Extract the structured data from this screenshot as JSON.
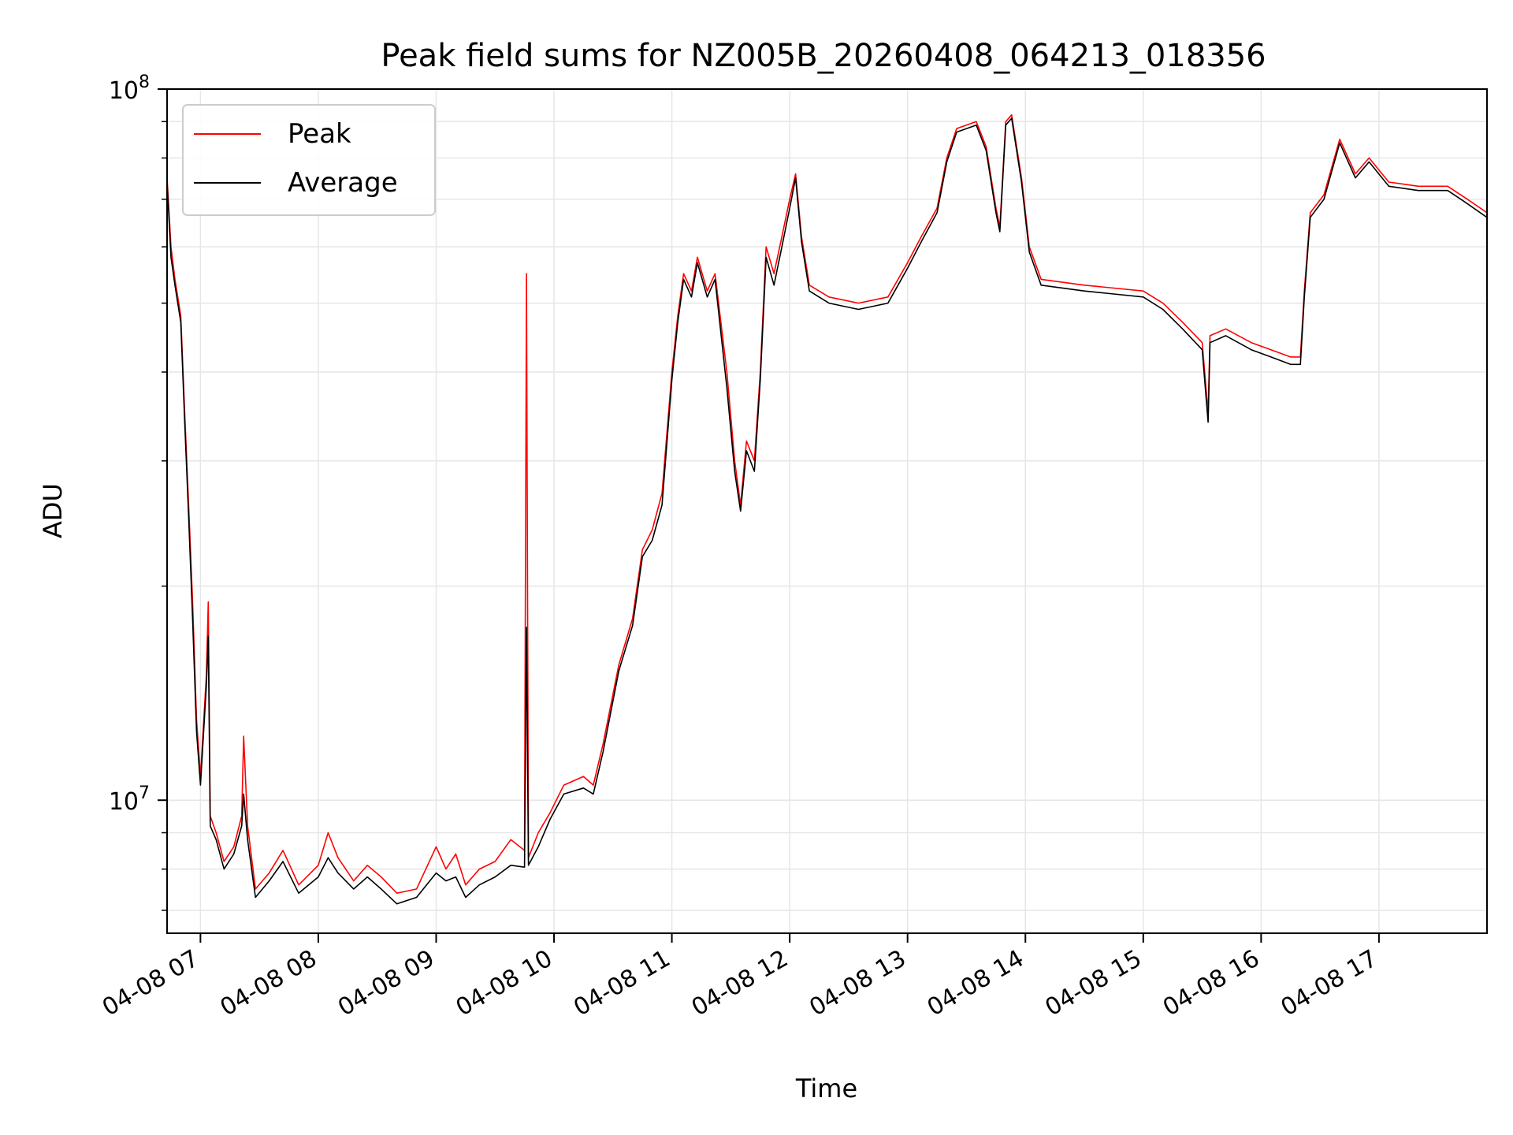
{
  "chart_data": {
    "type": "line",
    "title": "Peak field sums for NZ005B_20260408_064213_018356",
    "xlabel": "Time",
    "ylabel": "ADU",
    "yscale": "log",
    "grid": true,
    "legend_placement": "top-left",
    "xlim": [
      "2026-04-08 06:43",
      "2026-04-08 17:55"
    ],
    "ylim": [
      6500000,
      100000000
    ],
    "x_ticks": [
      {
        "time": "2026-04-08 07:00",
        "label": "04-08 07"
      },
      {
        "time": "2026-04-08 08:00",
        "label": "04-08 08"
      },
      {
        "time": "2026-04-08 09:00",
        "label": "04-08 09"
      },
      {
        "time": "2026-04-08 10:00",
        "label": "04-08 10"
      },
      {
        "time": "2026-04-08 11:00",
        "label": "04-08 11"
      },
      {
        "time": "2026-04-08 12:00",
        "label": "04-08 12"
      },
      {
        "time": "2026-04-08 13:00",
        "label": "04-08 13"
      },
      {
        "time": "2026-04-08 14:00",
        "label": "04-08 14"
      },
      {
        "time": "2026-04-08 15:00",
        "label": "04-08 15"
      },
      {
        "time": "2026-04-08 16:00",
        "label": "04-08 16"
      },
      {
        "time": "2026-04-08 17:00",
        "label": "04-08 17"
      }
    ],
    "y_ticks": [
      {
        "value": 10000000,
        "base": "10",
        "exp": "7"
      },
      {
        "value": 100000000,
        "base": "10",
        "exp": "8"
      }
    ],
    "series": [
      {
        "name": "Peak",
        "color": "#ff0000",
        "points": [
          [
            "2026-04-08 06:43",
            75000000
          ],
          [
            "2026-04-08 06:45",
            60000000
          ],
          [
            "2026-04-08 06:47",
            54000000
          ],
          [
            "2026-04-08 06:50",
            48000000
          ],
          [
            "2026-04-08 06:52",
            35000000
          ],
          [
            "2026-04-08 06:54",
            26000000
          ],
          [
            "2026-04-08 06:56",
            19000000
          ],
          [
            "2026-04-08 06:58",
            13000000
          ],
          [
            "2026-04-08 07:00",
            10800000
          ],
          [
            "2026-04-08 07:03",
            15000000
          ],
          [
            "2026-04-08 07:04",
            19000000
          ],
          [
            "2026-04-08 07:05",
            9500000
          ],
          [
            "2026-04-08 07:08",
            9000000
          ],
          [
            "2026-04-08 07:12",
            8200000
          ],
          [
            "2026-04-08 07:17",
            8600000
          ],
          [
            "2026-04-08 07:21",
            9500000
          ],
          [
            "2026-04-08 07:22",
            12300000
          ],
          [
            "2026-04-08 07:24",
            9200000
          ],
          [
            "2026-04-08 07:28",
            7500000
          ],
          [
            "2026-04-08 07:35",
            7900000
          ],
          [
            "2026-04-08 07:42",
            8500000
          ],
          [
            "2026-04-08 07:50",
            7600000
          ],
          [
            "2026-04-08 08:00",
            8100000
          ],
          [
            "2026-04-08 08:05",
            9000000
          ],
          [
            "2026-04-08 08:10",
            8300000
          ],
          [
            "2026-04-08 08:18",
            7700000
          ],
          [
            "2026-04-08 08:25",
            8100000
          ],
          [
            "2026-04-08 08:32",
            7800000
          ],
          [
            "2026-04-08 08:40",
            7400000
          ],
          [
            "2026-04-08 08:50",
            7500000
          ],
          [
            "2026-04-08 09:00",
            8600000
          ],
          [
            "2026-04-08 09:05",
            8000000
          ],
          [
            "2026-04-08 09:10",
            8400000
          ],
          [
            "2026-04-08 09:15",
            7600000
          ],
          [
            "2026-04-08 09:22",
            8000000
          ],
          [
            "2026-04-08 09:30",
            8200000
          ],
          [
            "2026-04-08 09:38",
            8800000
          ],
          [
            "2026-04-08 09:45",
            8500000
          ],
          [
            "2026-04-08 09:46",
            55000000
          ],
          [
            "2026-04-08 09:47",
            8300000
          ],
          [
            "2026-04-08 09:52",
            9000000
          ],
          [
            "2026-04-08 09:58",
            9600000
          ],
          [
            "2026-04-08 10:05",
            10500000
          ],
          [
            "2026-04-08 10:15",
            10800000
          ],
          [
            "2026-04-08 10:20",
            10500000
          ],
          [
            "2026-04-08 10:25",
            12000000
          ],
          [
            "2026-04-08 10:33",
            15500000
          ],
          [
            "2026-04-08 10:40",
            18000000
          ],
          [
            "2026-04-08 10:45",
            22500000
          ],
          [
            "2026-04-08 10:50",
            24000000
          ],
          [
            "2026-04-08 10:55",
            27000000
          ],
          [
            "2026-04-08 11:00",
            40000000
          ],
          [
            "2026-04-08 11:03",
            48000000
          ],
          [
            "2026-04-08 11:06",
            55000000
          ],
          [
            "2026-04-08 11:10",
            52000000
          ],
          [
            "2026-04-08 11:13",
            58000000
          ],
          [
            "2026-04-08 11:18",
            52000000
          ],
          [
            "2026-04-08 11:22",
            55000000
          ],
          [
            "2026-04-08 11:28",
            40000000
          ],
          [
            "2026-04-08 11:32",
            30000000
          ],
          [
            "2026-04-08 11:35",
            26000000
          ],
          [
            "2026-04-08 11:38",
            32000000
          ],
          [
            "2026-04-08 11:42",
            30000000
          ],
          [
            "2026-04-08 11:45",
            40000000
          ],
          [
            "2026-04-08 11:48",
            60000000
          ],
          [
            "2026-04-08 11:52",
            55000000
          ],
          [
            "2026-04-08 11:56",
            62000000
          ],
          [
            "2026-04-08 12:00",
            70000000
          ],
          [
            "2026-04-08 12:03",
            76000000
          ],
          [
            "2026-04-08 12:06",
            62000000
          ],
          [
            "2026-04-08 12:10",
            53000000
          ],
          [
            "2026-04-08 12:20",
            51000000
          ],
          [
            "2026-04-08 12:35",
            50000000
          ],
          [
            "2026-04-08 12:50",
            51000000
          ],
          [
            "2026-04-08 13:00",
            57000000
          ],
          [
            "2026-04-08 13:07",
            62000000
          ],
          [
            "2026-04-08 13:15",
            68000000
          ],
          [
            "2026-04-08 13:20",
            80000000
          ],
          [
            "2026-04-08 13:25",
            88000000
          ],
          [
            "2026-04-08 13:35",
            90000000
          ],
          [
            "2026-04-08 13:40",
            83000000
          ],
          [
            "2026-04-08 13:45",
            68000000
          ],
          [
            "2026-04-08 13:47",
            64000000
          ],
          [
            "2026-04-08 13:50",
            90000000
          ],
          [
            "2026-04-08 13:53",
            92000000
          ],
          [
            "2026-04-08 13:58",
            75000000
          ],
          [
            "2026-04-08 14:02",
            60000000
          ],
          [
            "2026-04-08 14:08",
            54000000
          ],
          [
            "2026-04-08 14:30",
            53000000
          ],
          [
            "2026-04-08 14:45",
            52500000
          ],
          [
            "2026-04-08 15:00",
            52000000
          ],
          [
            "2026-04-08 15:10",
            50000000
          ],
          [
            "2026-04-08 15:20",
            47000000
          ],
          [
            "2026-04-08 15:30",
            44000000
          ],
          [
            "2026-04-08 15:33",
            35000000
          ],
          [
            "2026-04-08 15:34",
            45000000
          ],
          [
            "2026-04-08 15:42",
            46000000
          ],
          [
            "2026-04-08 15:55",
            44000000
          ],
          [
            "2026-04-08 16:05",
            43000000
          ],
          [
            "2026-04-08 16:15",
            42000000
          ],
          [
            "2026-04-08 16:20",
            42000000
          ],
          [
            "2026-04-08 16:22",
            52000000
          ],
          [
            "2026-04-08 16:25",
            67000000
          ],
          [
            "2026-04-08 16:32",
            71000000
          ],
          [
            "2026-04-08 16:40",
            85000000
          ],
          [
            "2026-04-08 16:48",
            76000000
          ],
          [
            "2026-04-08 16:55",
            80000000
          ],
          [
            "2026-04-08 17:05",
            74000000
          ],
          [
            "2026-04-08 17:20",
            73000000
          ],
          [
            "2026-04-08 17:35",
            73000000
          ],
          [
            "2026-04-08 17:45",
            70000000
          ],
          [
            "2026-04-08 17:55",
            67000000
          ]
        ]
      },
      {
        "name": "Average",
        "color": "#000000",
        "points": [
          [
            "2026-04-08 06:43",
            74000000
          ],
          [
            "2026-04-08 06:45",
            58000000
          ],
          [
            "2026-04-08 06:47",
            53000000
          ],
          [
            "2026-04-08 06:50",
            47000000
          ],
          [
            "2026-04-08 06:52",
            34000000
          ],
          [
            "2026-04-08 06:54",
            25000000
          ],
          [
            "2026-04-08 06:56",
            18000000
          ],
          [
            "2026-04-08 06:58",
            12500000
          ],
          [
            "2026-04-08 07:00",
            10500000
          ],
          [
            "2026-04-08 07:03",
            14500000
          ],
          [
            "2026-04-08 07:04",
            17000000
          ],
          [
            "2026-04-08 07:05",
            9200000
          ],
          [
            "2026-04-08 07:08",
            8800000
          ],
          [
            "2026-04-08 07:12",
            8000000
          ],
          [
            "2026-04-08 07:17",
            8400000
          ],
          [
            "2026-04-08 07:21",
            9200000
          ],
          [
            "2026-04-08 07:22",
            10200000
          ],
          [
            "2026-04-08 07:24",
            8800000
          ],
          [
            "2026-04-08 07:28",
            7300000
          ],
          [
            "2026-04-08 07:35",
            7700000
          ],
          [
            "2026-04-08 07:42",
            8200000
          ],
          [
            "2026-04-08 07:50",
            7400000
          ],
          [
            "2026-04-08 08:00",
            7800000
          ],
          [
            "2026-04-08 08:05",
            8300000
          ],
          [
            "2026-04-08 08:10",
            7900000
          ],
          [
            "2026-04-08 08:18",
            7500000
          ],
          [
            "2026-04-08 08:25",
            7800000
          ],
          [
            "2026-04-08 08:32",
            7500000
          ],
          [
            "2026-04-08 08:40",
            7150000
          ],
          [
            "2026-04-08 08:50",
            7300000
          ],
          [
            "2026-04-08 09:00",
            7900000
          ],
          [
            "2026-04-08 09:05",
            7700000
          ],
          [
            "2026-04-08 09:10",
            7800000
          ],
          [
            "2026-04-08 09:15",
            7300000
          ],
          [
            "2026-04-08 09:22",
            7600000
          ],
          [
            "2026-04-08 09:30",
            7800000
          ],
          [
            "2026-04-08 09:38",
            8100000
          ],
          [
            "2026-04-08 09:45",
            8050000
          ],
          [
            "2026-04-08 09:46",
            17500000
          ],
          [
            "2026-04-08 09:47",
            8100000
          ],
          [
            "2026-04-08 09:52",
            8600000
          ],
          [
            "2026-04-08 09:58",
            9400000
          ],
          [
            "2026-04-08 10:05",
            10200000
          ],
          [
            "2026-04-08 10:15",
            10400000
          ],
          [
            "2026-04-08 10:20",
            10200000
          ],
          [
            "2026-04-08 10:25",
            11700000
          ],
          [
            "2026-04-08 10:33",
            15200000
          ],
          [
            "2026-04-08 10:40",
            17600000
          ],
          [
            "2026-04-08 10:45",
            22000000
          ],
          [
            "2026-04-08 10:50",
            23200000
          ],
          [
            "2026-04-08 10:55",
            26000000
          ],
          [
            "2026-04-08 11:00",
            39000000
          ],
          [
            "2026-04-08 11:03",
            47000000
          ],
          [
            "2026-04-08 11:06",
            54000000
          ],
          [
            "2026-04-08 11:10",
            51000000
          ],
          [
            "2026-04-08 11:13",
            57000000
          ],
          [
            "2026-04-08 11:18",
            51000000
          ],
          [
            "2026-04-08 11:22",
            54000000
          ],
          [
            "2026-04-08 11:28",
            38000000
          ],
          [
            "2026-04-08 11:32",
            29000000
          ],
          [
            "2026-04-08 11:35",
            25500000
          ],
          [
            "2026-04-08 11:38",
            31000000
          ],
          [
            "2026-04-08 11:42",
            29000000
          ],
          [
            "2026-04-08 11:45",
            39000000
          ],
          [
            "2026-04-08 11:48",
            58000000
          ],
          [
            "2026-04-08 11:52",
            53000000
          ],
          [
            "2026-04-08 11:56",
            60000000
          ],
          [
            "2026-04-08 12:00",
            68000000
          ],
          [
            "2026-04-08 12:03",
            75000000
          ],
          [
            "2026-04-08 12:06",
            61000000
          ],
          [
            "2026-04-08 12:10",
            52000000
          ],
          [
            "2026-04-08 12:20",
            50000000
          ],
          [
            "2026-04-08 12:35",
            49000000
          ],
          [
            "2026-04-08 12:50",
            50000000
          ],
          [
            "2026-04-08 13:00",
            56000000
          ],
          [
            "2026-04-08 13:07",
            61000000
          ],
          [
            "2026-04-08 13:15",
            67000000
          ],
          [
            "2026-04-08 13:20",
            79000000
          ],
          [
            "2026-04-08 13:25",
            87000000
          ],
          [
            "2026-04-08 13:35",
            89000000
          ],
          [
            "2026-04-08 13:40",
            82000000
          ],
          [
            "2026-04-08 13:45",
            67000000
          ],
          [
            "2026-04-08 13:47",
            63000000
          ],
          [
            "2026-04-08 13:50",
            89000000
          ],
          [
            "2026-04-08 13:53",
            91000000
          ],
          [
            "2026-04-08 13:58",
            74000000
          ],
          [
            "2026-04-08 14:02",
            59000000
          ],
          [
            "2026-04-08 14:08",
            53000000
          ],
          [
            "2026-04-08 14:30",
            52000000
          ],
          [
            "2026-04-08 14:45",
            51500000
          ],
          [
            "2026-04-08 15:00",
            51000000
          ],
          [
            "2026-04-08 15:10",
            49000000
          ],
          [
            "2026-04-08 15:20",
            46000000
          ],
          [
            "2026-04-08 15:30",
            43000000
          ],
          [
            "2026-04-08 15:33",
            34000000
          ],
          [
            "2026-04-08 15:34",
            44000000
          ],
          [
            "2026-04-08 15:42",
            45000000
          ],
          [
            "2026-04-08 15:55",
            43000000
          ],
          [
            "2026-04-08 16:05",
            42000000
          ],
          [
            "2026-04-08 16:15",
            41000000
          ],
          [
            "2026-04-08 16:20",
            41000000
          ],
          [
            "2026-04-08 16:22",
            51000000
          ],
          [
            "2026-04-08 16:25",
            66000000
          ],
          [
            "2026-04-08 16:32",
            70000000
          ],
          [
            "2026-04-08 16:40",
            84000000
          ],
          [
            "2026-04-08 16:48",
            75000000
          ],
          [
            "2026-04-08 16:55",
            79000000
          ],
          [
            "2026-04-08 17:05",
            73000000
          ],
          [
            "2026-04-08 17:20",
            72000000
          ],
          [
            "2026-04-08 17:35",
            72000000
          ],
          [
            "2026-04-08 17:45",
            69000000
          ],
          [
            "2026-04-08 17:55",
            66000000
          ]
        ]
      }
    ]
  }
}
